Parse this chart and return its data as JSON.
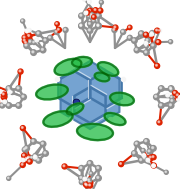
{
  "background_color": "#ffffff",
  "figsize": [
    1.8,
    1.89
  ],
  "dpi": 100,
  "bg_rgb": [
    245,
    245,
    248
  ],
  "atoms": {
    "C": {
      "color": "#808080",
      "r": 3.5
    },
    "O": {
      "color": "#cc2200",
      "r": 3.0
    },
    "H": {
      "color": "#f0f0f0",
      "r": 2.0
    },
    "N": {
      "color": "#1a3399",
      "r": 3.5
    },
    "blue_aromatic": {
      "color": "#6699cc",
      "r": 4.0
    }
  },
  "green_color": "#22bb44",
  "blue_core_color": "#6699cc",
  "dark_blue": "#223399",
  "gray": "#909090",
  "red": "#dd2200",
  "white": "#f5f5f5"
}
